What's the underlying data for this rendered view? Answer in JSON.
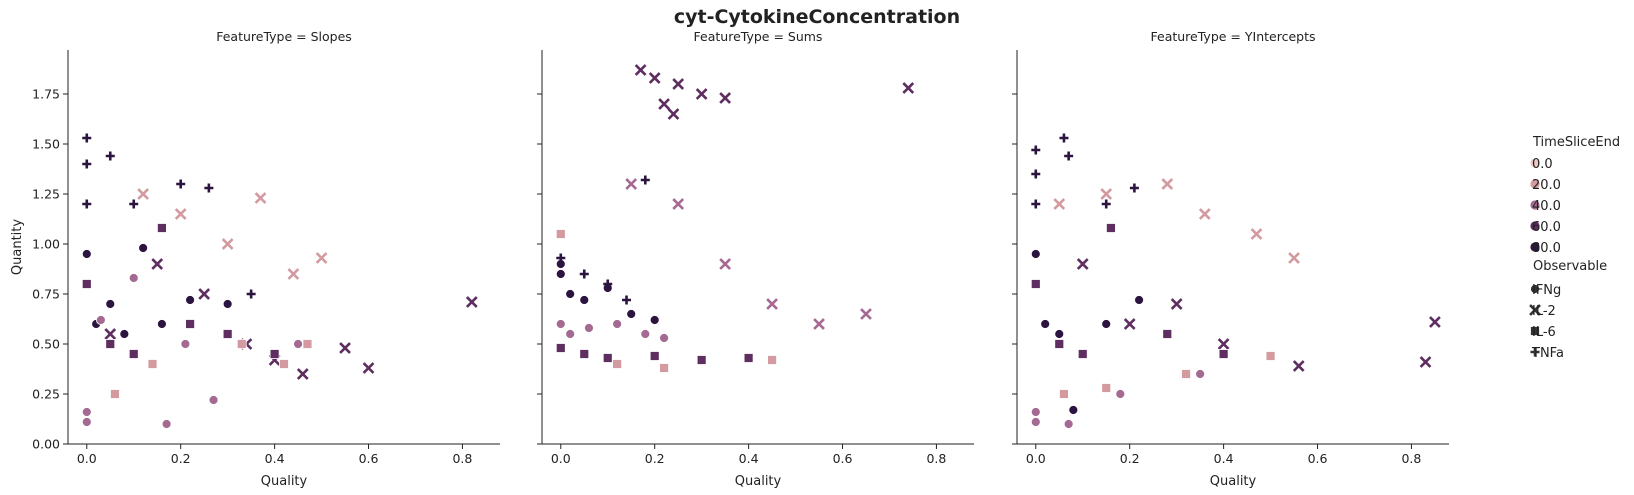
{
  "chart_data": {
    "type": "scatter",
    "title": "cyt-CytokineConcentration",
    "xlabel": "Quality",
    "ylabel": "Quantity",
    "xlim": [
      -0.04,
      0.88
    ],
    "ylim": [
      0.0,
      1.97
    ],
    "x_ticks": [
      "0.0",
      "0.2",
      "0.4",
      "0.6",
      "0.8"
    ],
    "y_ticks": [
      "0.00",
      "0.25",
      "0.50",
      "0.75",
      "1.00",
      "1.25",
      "1.50",
      "1.75"
    ],
    "grid": false,
    "legend_placement": "right",
    "facets": [
      {
        "title": "FeatureType = Slopes",
        "series": [
          {
            "marker": "IFNg",
            "hue": 80,
            "x": [
              0.0,
              0.02,
              0.05,
              0.08,
              0.12,
              0.16,
              0.22,
              0.3
            ],
            "y": [
              0.95,
              0.6,
              0.7,
              0.55,
              0.98,
              0.6,
              0.72,
              0.7
            ]
          },
          {
            "marker": "IFNg",
            "hue": 40,
            "x": [
              0.0,
              0.0,
              0.03,
              0.1,
              0.17,
              0.21,
              0.27,
              0.45
            ],
            "y": [
              0.11,
              0.16,
              0.62,
              0.83,
              0.1,
              0.5,
              0.22,
              0.5
            ]
          },
          {
            "marker": "IL-2",
            "hue": 60,
            "x": [
              0.05,
              0.15,
              0.25,
              0.34,
              0.4,
              0.46,
              0.55,
              0.6,
              0.82
            ],
            "y": [
              0.55,
              0.9,
              0.75,
              0.5,
              0.42,
              0.35,
              0.48,
              0.38,
              0.71
            ]
          },
          {
            "marker": "IL-2",
            "hue": 20,
            "x": [
              0.12,
              0.2,
              0.3,
              0.37,
              0.44,
              0.5
            ],
            "y": [
              1.25,
              1.15,
              1.0,
              1.23,
              0.85,
              0.93
            ]
          },
          {
            "marker": "IL-6",
            "hue": 60,
            "x": [
              0.0,
              0.05,
              0.1,
              0.16,
              0.22,
              0.3,
              0.4
            ],
            "y": [
              0.8,
              0.5,
              0.45,
              1.08,
              0.6,
              0.55,
              0.45
            ]
          },
          {
            "marker": "IL-6",
            "hue": 20,
            "x": [
              0.06,
              0.14,
              0.33,
              0.42,
              0.47
            ],
            "y": [
              0.25,
              0.4,
              0.5,
              0.4,
              0.5
            ]
          },
          {
            "marker": "TNFa",
            "hue": 80,
            "x": [
              0.0,
              0.0,
              0.0,
              0.05,
              0.1,
              0.2,
              0.26,
              0.35
            ],
            "y": [
              1.53,
              1.4,
              1.2,
              1.44,
              1.2,
              1.3,
              1.28,
              0.75
            ]
          }
        ]
      },
      {
        "title": "FeatureType = Sums",
        "series": [
          {
            "marker": "IFNg",
            "hue": 80,
            "x": [
              0.0,
              0.0,
              0.02,
              0.05,
              0.1,
              0.15,
              0.2
            ],
            "y": [
              0.9,
              0.85,
              0.75,
              0.72,
              0.78,
              0.65,
              0.62
            ]
          },
          {
            "marker": "IFNg",
            "hue": 40,
            "x": [
              0.0,
              0.02,
              0.06,
              0.12,
              0.18,
              0.22
            ],
            "y": [
              0.6,
              0.55,
              0.58,
              0.6,
              0.55,
              0.53
            ]
          },
          {
            "marker": "IL-2",
            "hue": 60,
            "x": [
              0.17,
              0.2,
              0.22,
              0.24,
              0.25,
              0.3,
              0.35,
              0.74
            ],
            "y": [
              1.87,
              1.83,
              1.7,
              1.65,
              1.8,
              1.75,
              1.73,
              1.78
            ]
          },
          {
            "marker": "IL-2",
            "hue": 40,
            "x": [
              0.15,
              0.25,
              0.35,
              0.45,
              0.55,
              0.65
            ],
            "y": [
              1.3,
              1.2,
              0.9,
              0.7,
              0.6,
              0.65
            ]
          },
          {
            "marker": "IL-6",
            "hue": 60,
            "x": [
              0.0,
              0.05,
              0.1,
              0.2,
              0.3,
              0.4
            ],
            "y": [
              0.48,
              0.45,
              0.43,
              0.44,
              0.42,
              0.43
            ]
          },
          {
            "marker": "IL-6",
            "hue": 20,
            "x": [
              0.0,
              0.12,
              0.22,
              0.45
            ],
            "y": [
              1.05,
              0.4,
              0.38,
              0.42
            ]
          },
          {
            "marker": "TNFa",
            "hue": 80,
            "x": [
              0.0,
              0.05,
              0.1,
              0.14,
              0.18
            ],
            "y": [
              0.93,
              0.85,
              0.8,
              0.72,
              1.32
            ]
          }
        ]
      },
      {
        "title": "FeatureType = YIntercepts",
        "series": [
          {
            "marker": "IFNg",
            "hue": 80,
            "x": [
              0.0,
              0.02,
              0.05,
              0.08,
              0.15,
              0.22
            ],
            "y": [
              0.95,
              0.6,
              0.55,
              0.17,
              0.6,
              0.72
            ]
          },
          {
            "marker": "IFNg",
            "hue": 40,
            "x": [
              0.0,
              0.0,
              0.07,
              0.18,
              0.35
            ],
            "y": [
              0.11,
              0.16,
              0.1,
              0.25,
              0.35
            ]
          },
          {
            "marker": "IL-2",
            "hue": 60,
            "x": [
              0.1,
              0.2,
              0.3,
              0.4,
              0.56,
              0.83,
              0.85
            ],
            "y": [
              0.9,
              0.6,
              0.7,
              0.5,
              0.39,
              0.41,
              0.61
            ]
          },
          {
            "marker": "IL-2",
            "hue": 20,
            "x": [
              0.05,
              0.15,
              0.28,
              0.36,
              0.47,
              0.55
            ],
            "y": [
              1.2,
              1.25,
              1.3,
              1.15,
              1.05,
              0.93
            ]
          },
          {
            "marker": "IL-6",
            "hue": 60,
            "x": [
              0.0,
              0.05,
              0.1,
              0.16,
              0.28,
              0.4
            ],
            "y": [
              0.8,
              0.5,
              0.45,
              1.08,
              0.55,
              0.45
            ]
          },
          {
            "marker": "IL-6",
            "hue": 20,
            "x": [
              0.06,
              0.15,
              0.32,
              0.5
            ],
            "y": [
              0.25,
              0.28,
              0.35,
              0.44
            ]
          },
          {
            "marker": "TNFa",
            "hue": 80,
            "x": [
              0.0,
              0.0,
              0.0,
              0.06,
              0.07,
              0.15,
              0.21
            ],
            "y": [
              1.47,
              1.35,
              1.2,
              1.53,
              1.44,
              1.2,
              1.28
            ]
          }
        ]
      }
    ],
    "legend": {
      "hue_title": "TimeSliceEnd",
      "hue_levels": [
        {
          "label": "0.0",
          "color": "#ecc8c4"
        },
        {
          "label": "20.0",
          "color": "#d39aa0"
        },
        {
          "label": "40.0",
          "color": "#a56a92"
        },
        {
          "label": "60.0",
          "color": "#5e2e60"
        },
        {
          "label": "80.0",
          "color": "#2b1540"
        }
      ],
      "marker_title": "Observable",
      "markers": [
        {
          "label": "IFNg",
          "shape": "circle"
        },
        {
          "label": "IL-2",
          "shape": "x"
        },
        {
          "label": "IL-6",
          "shape": "square"
        },
        {
          "label": "TNFa",
          "shape": "plus"
        }
      ]
    }
  }
}
